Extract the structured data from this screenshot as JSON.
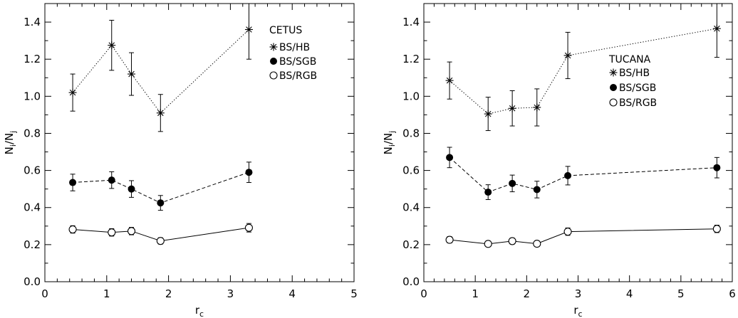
{
  "chart_data": [
    {
      "type": "scatter",
      "title": "CETUS",
      "xlabel": "r",
      "xlabel_sub": "c",
      "ylabel_parts": [
        "N",
        "i",
        "/N",
        "j"
      ],
      "xlim": [
        0,
        5
      ],
      "ylim": [
        0,
        1.5
      ],
      "xticks": [
        "0",
        "1",
        "2",
        "3",
        "4",
        "5"
      ],
      "yticks": [
        "0.0",
        "0.2",
        "0.4",
        "0.6",
        "0.8",
        "1.0",
        "1.2",
        "1.4"
      ],
      "grid": false,
      "legend_position": "top-right",
      "series": [
        {
          "name": "BS/HB",
          "marker": "asterisk",
          "line": "dotted",
          "x": [
            0.45,
            1.08,
            1.4,
            1.87,
            3.3
          ],
          "y": [
            1.02,
            1.275,
            1.12,
            0.91,
            1.36
          ],
          "yerr": [
            0.1,
            0.135,
            0.115,
            0.1,
            0.16
          ]
        },
        {
          "name": "BS/SGB",
          "marker": "filled-circle",
          "line": "dashed",
          "x": [
            0.45,
            1.08,
            1.4,
            1.87,
            3.3
          ],
          "y": [
            0.535,
            0.548,
            0.5,
            0.425,
            0.59
          ],
          "yerr": [
            0.045,
            0.045,
            0.045,
            0.04,
            0.055
          ]
        },
        {
          "name": "BS/RGB",
          "marker": "open-circle",
          "line": "solid",
          "x": [
            0.45,
            1.08,
            1.4,
            1.87,
            3.3
          ],
          "y": [
            0.282,
            0.266,
            0.273,
            0.22,
            0.291
          ],
          "yerr": [
            0.02,
            0.02,
            0.02,
            0.017,
            0.023
          ]
        }
      ]
    },
    {
      "type": "scatter",
      "title": "TUCANA",
      "xlabel": "r",
      "xlabel_sub": "c",
      "ylabel_parts": [
        "N",
        "i",
        "/N",
        "j"
      ],
      "xlim": [
        0,
        6
      ],
      "ylim": [
        0,
        1.5
      ],
      "xticks": [
        "0",
        "1",
        "2",
        "3",
        "4",
        "5",
        "6"
      ],
      "yticks": [
        "0.0",
        "0.2",
        "0.4",
        "0.6",
        "0.8",
        "1.0",
        "1.2",
        "1.4"
      ],
      "grid": false,
      "legend_position": "top-right",
      "series": [
        {
          "name": "BS/HB",
          "marker": "asterisk",
          "line": "dotted",
          "x": [
            0.5,
            1.25,
            1.72,
            2.2,
            2.8,
            5.7
          ],
          "y": [
            1.085,
            0.905,
            0.935,
            0.94,
            1.22,
            1.365
          ],
          "yerr": [
            0.1,
            0.09,
            0.095,
            0.1,
            0.125,
            0.155
          ]
        },
        {
          "name": "BS/SGB",
          "marker": "filled-circle",
          "line": "dashed",
          "x": [
            0.5,
            1.25,
            1.72,
            2.2,
            2.8,
            5.7
          ],
          "y": [
            0.67,
            0.483,
            0.53,
            0.497,
            0.572,
            0.615
          ],
          "yerr": [
            0.055,
            0.04,
            0.045,
            0.045,
            0.05,
            0.055
          ]
        },
        {
          "name": "BS/RGB",
          "marker": "open-circle",
          "line": "solid",
          "x": [
            0.5,
            1.25,
            1.72,
            2.2,
            2.8,
            5.7
          ],
          "y": [
            0.226,
            0.204,
            0.219,
            0.205,
            0.27,
            0.285
          ],
          "yerr": [
            0.017,
            0.015,
            0.016,
            0.015,
            0.02,
            0.02
          ]
        }
      ]
    }
  ]
}
